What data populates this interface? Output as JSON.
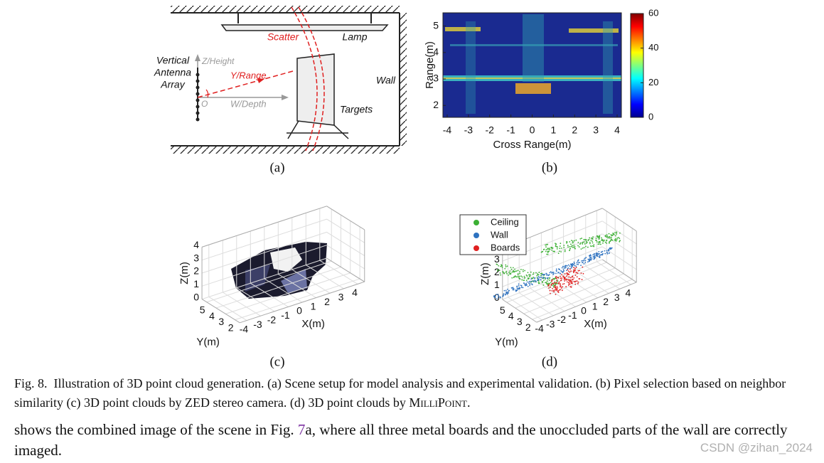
{
  "panel_a": {
    "labels": {
      "scatter": "Scatter",
      "lamp": "Lamp",
      "antenna": [
        "Vertical",
        "Antenna",
        "Array"
      ],
      "z_axis": "Z/Height",
      "y_axis": "Y/Range",
      "w_axis": "W/Depth",
      "origin": "O",
      "wall": "Wall",
      "targets": "Targets"
    },
    "caption": "(a)"
  },
  "panel_b": {
    "chart_data": {
      "type": "heatmap",
      "xlabel": "Cross Range(m)",
      "ylabel": "Range(m)",
      "xlim": [
        -4.2,
        4.2
      ],
      "xticks": [
        -4,
        -3,
        -2,
        -1,
        0,
        1,
        2,
        3,
        4
      ],
      "ylim": [
        1.55,
        5.5
      ],
      "yticks": [
        2,
        3,
        4,
        5
      ],
      "clim": [
        0,
        60
      ],
      "cticks": [
        0,
        20,
        40,
        60
      ],
      "colormap": "jet"
    },
    "caption": "(b)"
  },
  "panel_c": {
    "chart_data": {
      "type": "scatter3d",
      "xlabel": "X(m)",
      "ylabel": "Y(m)",
      "zlabel": "Z(m)",
      "xticks": [
        -4,
        -3,
        -2,
        -1,
        0,
        1,
        2,
        3,
        4
      ],
      "yticks": [
        2,
        3,
        4,
        5
      ],
      "zticks": [
        0,
        1,
        2,
        3,
        4
      ]
    },
    "caption": "(c)"
  },
  "panel_d": {
    "chart_data": {
      "type": "scatter3d",
      "xlabel": "X(m)",
      "ylabel": "Y(m)",
      "zlabel": "Z(m)",
      "xticks": [
        -4,
        -3,
        -2,
        -1,
        0,
        1,
        2,
        3,
        4
      ],
      "yticks": [
        2,
        3,
        4,
        5
      ],
      "zticks": [
        0,
        1,
        2,
        3
      ],
      "series": [
        {
          "name": "Ceiling",
          "color": "#3cb034"
        },
        {
          "name": "Wall",
          "color": "#2e72c0"
        },
        {
          "name": "Boards",
          "color": "#e02020"
        }
      ]
    },
    "caption": "(d)"
  },
  "caption": {
    "label": "Fig. 8.",
    "text": "Illustration of 3D point cloud generation. (a) Scene setup for model analysis and experimental validation. (b) Pixel selection based on neighbor similarity (c) 3D point clouds by ZED stereo camera. (d) 3D point clouds by ",
    "name": "MilliPoint",
    "end": "."
  },
  "body": {
    "text": "shows the combined image of the scene in Fig. ",
    "ref": "7",
    "text_end": "a, where all three metal boards and the unoccluded parts of the wall are correctly imaged."
  },
  "watermark": "CSDN @zihan_2024"
}
